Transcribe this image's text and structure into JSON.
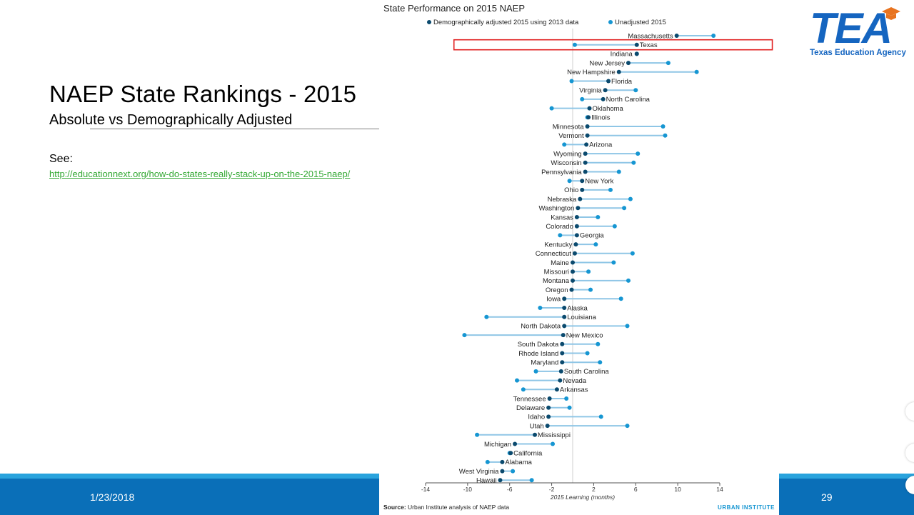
{
  "slide": {
    "title": "NAEP State Rankings - 2015",
    "subtitle": "Absolute vs Demographically Adjusted",
    "see_label": "See:",
    "link": "http://educationnext.org/how-do-states-really-stack-up-on-the-2015-naep/",
    "date": "1/23/2018",
    "page_number": "29"
  },
  "logo": {
    "word": "TEA",
    "agency": "Texas Education Agency",
    "color": "#1565c0",
    "cap_color": "#e8731f"
  },
  "colors": {
    "adjusted": "#0b4a6e",
    "unadjusted": "#1696d2",
    "connector": "#8fc6e6",
    "highlight": "#e02020",
    "footer_bar": "#0a6fb8",
    "footer_accent": "#29a3dd"
  },
  "chart_data": {
    "type": "dumbbell",
    "title": "State Performance on 2015 NAEP",
    "xlabel": "2015 Learning (months)",
    "xlim": [
      -14,
      14
    ],
    "xticks": [
      -14,
      -10,
      -6,
      -2,
      2,
      6,
      10,
      14
    ],
    "reference_line": 0,
    "highlighted_state": "Texas",
    "legend": {
      "adjusted": "Demographically adjusted 2015 using 2013 data",
      "unadjusted": "Unadjusted 2015"
    },
    "source_label": "Source:",
    "source_text": "Urban Institute analysis of NAEP data",
    "credit": "URBAN INSTITUTE",
    "states": [
      {
        "name": "Massachusetts",
        "adjusted": 9.9,
        "unadjusted": 13.4
      },
      {
        "name": "Texas",
        "adjusted": 6.1,
        "unadjusted": 0.2
      },
      {
        "name": "Indiana",
        "adjusted": 6.1,
        "unadjusted": 6.1
      },
      {
        "name": "New Jersey",
        "adjusted": 5.3,
        "unadjusted": 9.1
      },
      {
        "name": "New Hampshire",
        "adjusted": 4.4,
        "unadjusted": 11.8
      },
      {
        "name": "Florida",
        "adjusted": 3.4,
        "unadjusted": -0.1
      },
      {
        "name": "Virginia",
        "adjusted": 3.1,
        "unadjusted": 6.0
      },
      {
        "name": "North Carolina",
        "adjusted": 2.9,
        "unadjusted": 0.9
      },
      {
        "name": "Oklahoma",
        "adjusted": 1.6,
        "unadjusted": -2.0
      },
      {
        "name": "Illinois",
        "adjusted": 1.5,
        "unadjusted": 1.4
      },
      {
        "name": "Minnesota",
        "adjusted": 1.4,
        "unadjusted": 8.6
      },
      {
        "name": "Vermont",
        "adjusted": 1.4,
        "unadjusted": 8.8
      },
      {
        "name": "Arizona",
        "adjusted": 1.3,
        "unadjusted": -0.8
      },
      {
        "name": "Wyoming",
        "adjusted": 1.2,
        "unadjusted": 6.2
      },
      {
        "name": "Wisconsin",
        "adjusted": 1.2,
        "unadjusted": 5.8
      },
      {
        "name": "Pennsylvania",
        "adjusted": 1.2,
        "unadjusted": 4.4
      },
      {
        "name": "New York",
        "adjusted": 0.9,
        "unadjusted": -0.3
      },
      {
        "name": "Ohio",
        "adjusted": 0.9,
        "unadjusted": 3.6
      },
      {
        "name": "Nebraska",
        "adjusted": 0.7,
        "unadjusted": 5.5
      },
      {
        "name": "Washington",
        "adjusted": 0.5,
        "unadjusted": 4.9
      },
      {
        "name": "Kansas",
        "adjusted": 0.4,
        "unadjusted": 2.4
      },
      {
        "name": "Colorado",
        "adjusted": 0.4,
        "unadjusted": 4.0
      },
      {
        "name": "Georgia",
        "adjusted": 0.4,
        "unadjusted": -1.2
      },
      {
        "name": "Kentucky",
        "adjusted": 0.3,
        "unadjusted": 2.2
      },
      {
        "name": "Connecticut",
        "adjusted": 0.2,
        "unadjusted": 5.7
      },
      {
        "name": "Maine",
        "adjusted": 0.0,
        "unadjusted": 3.9
      },
      {
        "name": "Missouri",
        "adjusted": 0.0,
        "unadjusted": 1.5
      },
      {
        "name": "Montana",
        "adjusted": 0.0,
        "unadjusted": 5.3
      },
      {
        "name": "Oregon",
        "adjusted": -0.1,
        "unadjusted": 1.7
      },
      {
        "name": "Iowa",
        "adjusted": -0.8,
        "unadjusted": 4.6
      },
      {
        "name": "Alaska",
        "adjusted": -0.8,
        "unadjusted": -3.1
      },
      {
        "name": "Louisiana",
        "adjusted": -0.8,
        "unadjusted": -8.2
      },
      {
        "name": "North Dakota",
        "adjusted": -0.8,
        "unadjusted": 5.2
      },
      {
        "name": "New Mexico",
        "adjusted": -0.9,
        "unadjusted": -10.3
      },
      {
        "name": "South Dakota",
        "adjusted": -1.0,
        "unadjusted": 2.4
      },
      {
        "name": "Rhode Island",
        "adjusted": -1.0,
        "unadjusted": 1.4
      },
      {
        "name": "Maryland",
        "adjusted": -1.0,
        "unadjusted": 2.6
      },
      {
        "name": "South Carolina",
        "adjusted": -1.1,
        "unadjusted": -3.5
      },
      {
        "name": "Nevada",
        "adjusted": -1.2,
        "unadjusted": -5.3
      },
      {
        "name": "Arkansas",
        "adjusted": -1.5,
        "unadjusted": -4.7
      },
      {
        "name": "Tennessee",
        "adjusted": -2.2,
        "unadjusted": -0.6
      },
      {
        "name": "Delaware",
        "adjusted": -2.3,
        "unadjusted": -0.3
      },
      {
        "name": "Idaho",
        "adjusted": -2.3,
        "unadjusted": 2.7
      },
      {
        "name": "Utah",
        "adjusted": -2.4,
        "unadjusted": 5.2
      },
      {
        "name": "Mississippi",
        "adjusted": -3.6,
        "unadjusted": -9.1
      },
      {
        "name": "Michigan",
        "adjusted": -5.5,
        "unadjusted": -1.9
      },
      {
        "name": "California",
        "adjusted": -5.9,
        "unadjusted": -6.0
      },
      {
        "name": "Alabama",
        "adjusted": -6.7,
        "unadjusted": -8.1
      },
      {
        "name": "West Virginia",
        "adjusted": -6.7,
        "unadjusted": -5.7
      },
      {
        "name": "Hawaii",
        "adjusted": -6.9,
        "unadjusted": -3.9
      }
    ]
  }
}
